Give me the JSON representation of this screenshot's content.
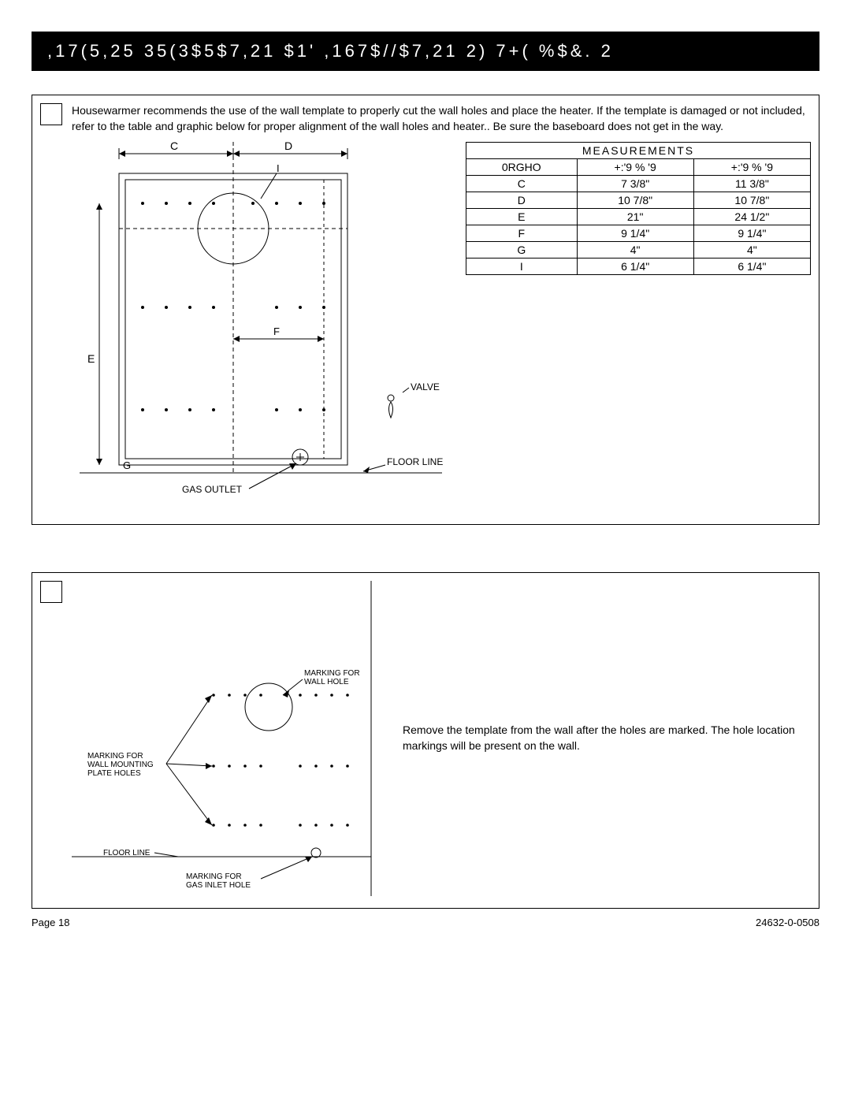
{
  "header": {
    "title": ",17(5,25 35(3$5$7,21 $1' ,167$//$7,21 2) 7+( %$&. 2"
  },
  "section1": {
    "intro": "Housewarmer recommends the use of the wall template to properly cut the wall holes and place the heater. If the template is damaged or not included, refer to the table and graphic below for proper alignment of the wall holes and heater.. Be sure the baseboard does not get in the way.",
    "labels": {
      "C": "C",
      "D": "D",
      "E": "E",
      "F": "F",
      "G": "G",
      "I": "I",
      "valve": "VALVE",
      "floor_line": "FLOOR LINE",
      "gas_outlet": "GAS OUTLET"
    },
    "table": {
      "title": "MEASUREMENTS",
      "header_row": [
        "0RGHO",
        "+:'9    % '9",
        "+:'9    % '9"
      ],
      "rows": [
        [
          "C",
          "7 3/8\"",
          "11 3/8\""
        ],
        [
          "D",
          "10 7/8\"",
          "10 7/8\""
        ],
        [
          "E",
          "21\"",
          "24 1/2\""
        ],
        [
          "F",
          "9 1/4\"",
          "9 1/4\""
        ],
        [
          "G",
          "4\"",
          "4\""
        ],
        [
          "I",
          "6 1/4\"",
          "6 1/4\""
        ]
      ]
    }
  },
  "section2": {
    "labels": {
      "wall_hole": "MARKING FOR\nWALL HOLE",
      "mounting": "MARKING FOR\nWALL MOUNTING\nPLATE HOLES",
      "floor_line": "FLOOR LINE",
      "gas_inlet": "MARKING FOR\nGAS INLET HOLE"
    },
    "text": "Remove the template from the wall after the holes are marked. The hole location markings will be present on the wall."
  },
  "footer": {
    "left": "Page 18",
    "right": "24632-0-0508"
  },
  "colors": {
    "bg": "#ffffff",
    "fg": "#000000",
    "header_bg": "#000000",
    "header_fg": "#ffffff"
  }
}
